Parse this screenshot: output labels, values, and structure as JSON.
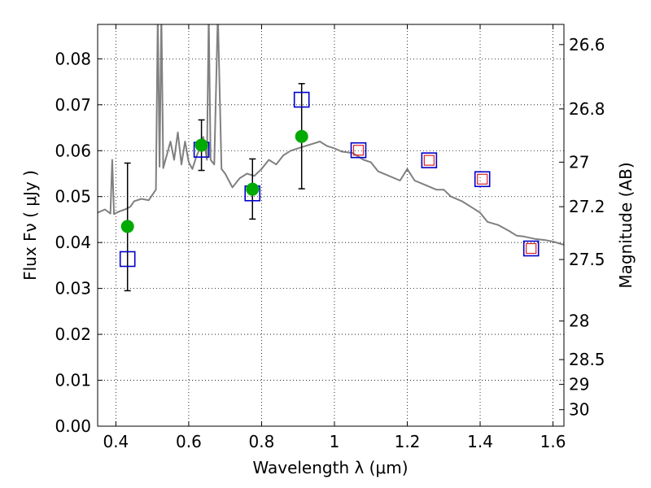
{
  "chart_data": {
    "type": "scatter",
    "title": "",
    "xlabel": "Wavelength  λ (μm)",
    "ylabel": "Flux  Fν  ( μJy )",
    "y2label": "Magnitude (AB)",
    "xlim": [
      0.35,
      1.63
    ],
    "ylim": [
      0.0,
      0.0875
    ],
    "grid": true,
    "legend": "none",
    "colors": {
      "spectrum": "#808080",
      "observed": "#00aa00",
      "model_box": "#0000cc",
      "model_box_inner": "#dd2222",
      "errorbar": "#000000"
    },
    "x_ticks": [
      0.4,
      0.6,
      0.8,
      1.0,
      1.2,
      1.4,
      1.6
    ],
    "x_tick_labels": [
      "0.4",
      "0.6",
      "0.8",
      "1",
      "1.2",
      "1.4",
      "1.6"
    ],
    "y_ticks": [
      0.0,
      0.01,
      0.02,
      0.03,
      0.04,
      0.05,
      0.06,
      0.07,
      0.08
    ],
    "y_tick_labels": [
      "0.00",
      "0.01",
      "0.02",
      "0.03",
      "0.04",
      "0.05",
      "0.06",
      "0.07",
      "0.08"
    ],
    "y2_ticks": [
      {
        "flux": 0.0831,
        "label": "26.6"
      },
      {
        "flux": 0.0691,
        "label": "26.8"
      },
      {
        "flux": 0.0575,
        "label": "27"
      },
      {
        "flux": 0.0478,
        "label": "27.2"
      },
      {
        "flux": 0.0363,
        "label": "27.5"
      },
      {
        "flux": 0.0229,
        "label": "28"
      },
      {
        "flux": 0.0145,
        "label": "28.5"
      },
      {
        "flux": 0.0091,
        "label": "29"
      },
      {
        "flux": 0.0036,
        "label": "30"
      }
    ],
    "observed_points": [
      {
        "x": 0.432,
        "y": 0.0435,
        "yerr_low": 0.0295,
        "yerr_high": 0.0573
      },
      {
        "x": 0.635,
        "y": 0.0612,
        "yerr_low": 0.0557,
        "yerr_high": 0.0667
      },
      {
        "x": 0.775,
        "y": 0.0516,
        "yerr_low": 0.0451,
        "yerr_high": 0.0582
      },
      {
        "x": 0.91,
        "y": 0.0631,
        "yerr_low": 0.0517,
        "yerr_high": 0.0746
      }
    ],
    "model_fluxes": [
      {
        "x": 0.432,
        "y": 0.0364,
        "inner": false
      },
      {
        "x": 0.635,
        "y": 0.0602,
        "inner": false
      },
      {
        "x": 0.775,
        "y": 0.0507,
        "inner": false
      },
      {
        "x": 0.91,
        "y": 0.0711,
        "inner": false
      },
      {
        "x": 1.066,
        "y": 0.0601,
        "inner": true
      },
      {
        "x": 1.26,
        "y": 0.0579,
        "inner": true
      },
      {
        "x": 1.406,
        "y": 0.0538,
        "inner": true
      },
      {
        "x": 1.54,
        "y": 0.0387,
        "inner": true
      }
    ],
    "spectrum": {
      "x": [
        0.35,
        0.37,
        0.385,
        0.39,
        0.395,
        0.41,
        0.425,
        0.44,
        0.45,
        0.47,
        0.49,
        0.51,
        0.515,
        0.52,
        0.525,
        0.53,
        0.55,
        0.56,
        0.57,
        0.58,
        0.59,
        0.6,
        0.61,
        0.62,
        0.63,
        0.64,
        0.65,
        0.655,
        0.66,
        0.67,
        0.68,
        0.69,
        0.7,
        0.72,
        0.74,
        0.76,
        0.78,
        0.8,
        0.82,
        0.84,
        0.86,
        0.88,
        0.9,
        0.92,
        0.94,
        0.96,
        0.98,
        1.0,
        1.02,
        1.05,
        1.08,
        1.1,
        1.12,
        1.15,
        1.18,
        1.2,
        1.22,
        1.25,
        1.28,
        1.3,
        1.32,
        1.35,
        1.38,
        1.4,
        1.42,
        1.45,
        1.48,
        1.5,
        1.52,
        1.55,
        1.58,
        1.6,
        1.63
      ],
      "y": [
        0.0465,
        0.0472,
        0.0463,
        0.058,
        0.0462,
        0.0468,
        0.0472,
        0.0478,
        0.049,
        0.0495,
        0.0492,
        0.0515,
        0.09,
        0.0565,
        0.09,
        0.0562,
        0.062,
        0.058,
        0.064,
        0.057,
        0.062,
        0.0575,
        0.056,
        0.0585,
        0.0605,
        0.063,
        0.058,
        0.09,
        0.058,
        0.057,
        0.09,
        0.056,
        0.055,
        0.052,
        0.054,
        0.055,
        0.0545,
        0.056,
        0.058,
        0.057,
        0.059,
        0.06,
        0.0605,
        0.061,
        0.0615,
        0.062,
        0.061,
        0.0605,
        0.0598,
        0.0595,
        0.058,
        0.0575,
        0.0555,
        0.0545,
        0.0535,
        0.056,
        0.0535,
        0.0525,
        0.0515,
        0.0515,
        0.05,
        0.049,
        0.0475,
        0.0465,
        0.0445,
        0.0438,
        0.0425,
        0.0415,
        0.0413,
        0.0408,
        0.0405,
        0.0402,
        0.0395
      ]
    }
  }
}
